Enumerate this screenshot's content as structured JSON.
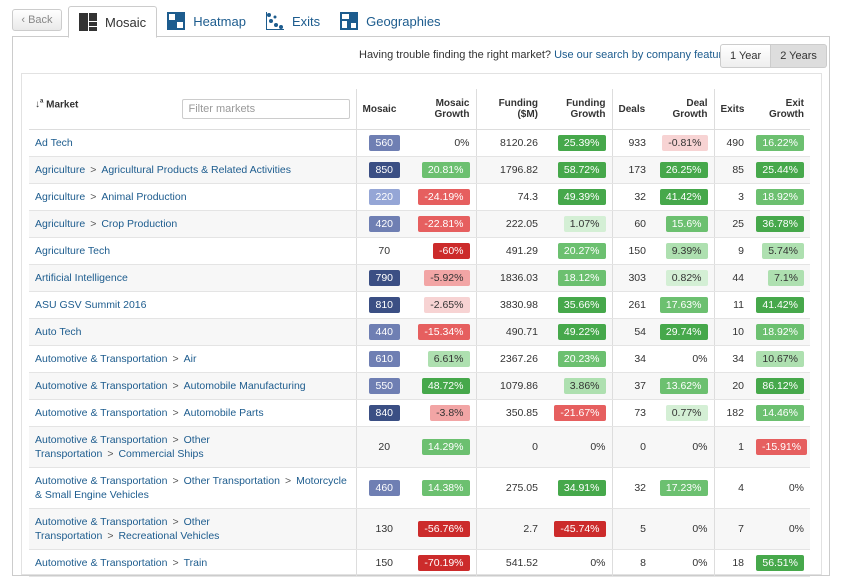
{
  "back_label": "Back",
  "tabs": [
    {
      "label": "Mosaic",
      "icon": "mosaic-icon",
      "active": true
    },
    {
      "label": "Heatmap",
      "icon": "heatmap-icon"
    },
    {
      "label": "Exits",
      "icon": "exits-icon"
    },
    {
      "label": "Geographies",
      "icon": "geographies-icon"
    }
  ],
  "help": {
    "text": "Having trouble finding the right market?",
    "link": "Use our search by company feature."
  },
  "years": [
    "1 Year",
    "2 Years"
  ],
  "filter_placeholder": "Filter markets",
  "columns": {
    "market": "Market",
    "mosaic": "Mosaic",
    "mosaic_growth": "Mosaic Growth",
    "funding": "Funding ($M)",
    "funding_growth": "Funding Growth",
    "deals": "Deals",
    "deal_growth": "Deal Growth",
    "exits": "Exits",
    "exit_growth": "Exit Growth"
  },
  "colors": {
    "mosaic_dark": "#3b4f84",
    "mosaic_mid": "#6f7fb3",
    "mosaic_light": "#95a6d6",
    "green_dark": "#46a84b",
    "green_mid": "#6cc070",
    "green_light": "#aee0b0",
    "green_pale": "#d4efd5",
    "red_dark": "#cc2b2b",
    "red_mid": "#e65f5f",
    "red_light": "#f2a5a5",
    "red_pale": "#f7d3d3"
  },
  "rows": [
    {
      "path": [
        "Ad Tech"
      ],
      "mosaic": "560",
      "mosaic_growth": "0%",
      "funding": "8120.26",
      "funding_growth": "25.39%",
      "deals": "933",
      "deal_growth": "-0.81%",
      "exits": "490",
      "exit_growth": "16.22%"
    },
    {
      "path": [
        "Agriculture",
        "Agricultural Products & Related Activities"
      ],
      "mosaic": "850",
      "mosaic_growth": "20.81%",
      "funding": "1796.82",
      "funding_growth": "58.72%",
      "deals": "173",
      "deal_growth": "26.25%",
      "exits": "85",
      "exit_growth": "25.44%"
    },
    {
      "path": [
        "Agriculture",
        "Animal Production"
      ],
      "mosaic": "220",
      "mosaic_growth": "-24.19%",
      "funding": "74.3",
      "funding_growth": "49.39%",
      "deals": "32",
      "deal_growth": "41.42%",
      "exits": "3",
      "exit_growth": "18.92%"
    },
    {
      "path": [
        "Agriculture",
        "Crop Production"
      ],
      "mosaic": "420",
      "mosaic_growth": "-22.81%",
      "funding": "222.05",
      "funding_growth": "1.07%",
      "deals": "60",
      "deal_growth": "15.6%",
      "exits": "25",
      "exit_growth": "36.78%"
    },
    {
      "path": [
        "Agriculture Tech"
      ],
      "mosaic": "70",
      "mosaic_growth": "-60%",
      "funding": "491.29",
      "funding_growth": "20.27%",
      "deals": "150",
      "deal_growth": "9.39%",
      "exits": "9",
      "exit_growth": "5.74%"
    },
    {
      "path": [
        "Artificial Intelligence"
      ],
      "mosaic": "790",
      "mosaic_growth": "-5.92%",
      "funding": "1836.03",
      "funding_growth": "18.12%",
      "deals": "303",
      "deal_growth": "0.82%",
      "exits": "44",
      "exit_growth": "7.1%"
    },
    {
      "path": [
        "ASU GSV Summit 2016"
      ],
      "mosaic": "810",
      "mosaic_growth": "-2.65%",
      "funding": "3830.98",
      "funding_growth": "35.66%",
      "deals": "261",
      "deal_growth": "17.63%",
      "exits": "11",
      "exit_growth": "41.42%"
    },
    {
      "path": [
        "Auto Tech"
      ],
      "mosaic": "440",
      "mosaic_growth": "-15.34%",
      "funding": "490.71",
      "funding_growth": "49.22%",
      "deals": "54",
      "deal_growth": "29.74%",
      "exits": "10",
      "exit_growth": "18.92%"
    },
    {
      "path": [
        "Automotive & Transportation",
        "Air"
      ],
      "mosaic": "610",
      "mosaic_growth": "6.61%",
      "funding": "2367.26",
      "funding_growth": "20.23%",
      "deals": "34",
      "deal_growth": "0%",
      "exits": "34",
      "exit_growth": "10.67%"
    },
    {
      "path": [
        "Automotive & Transportation",
        "Automobile Manufacturing"
      ],
      "mosaic": "550",
      "mosaic_growth": "48.72%",
      "funding": "1079.86",
      "funding_growth": "3.86%",
      "deals": "37",
      "deal_growth": "13.62%",
      "exits": "20",
      "exit_growth": "86.12%"
    },
    {
      "path": [
        "Automotive & Transportation",
        "Automobile Parts"
      ],
      "mosaic": "840",
      "mosaic_growth": "-3.8%",
      "funding": "350.85",
      "funding_growth": "-21.67%",
      "deals": "73",
      "deal_growth": "0.77%",
      "exits": "182",
      "exit_growth": "14.46%"
    },
    {
      "path": [
        "Automotive & Transportation",
        "Other Transportation",
        "Commercial Ships"
      ],
      "mosaic": "20",
      "mosaic_growth": "14.29%",
      "funding": "0",
      "funding_growth": "0%",
      "deals": "0",
      "deal_growth": "0%",
      "exits": "1",
      "exit_growth": "-15.91%"
    },
    {
      "path": [
        "Automotive & Transportation",
        "Other Transportation",
        "Motorcycle & Small Engine Vehicles"
      ],
      "mosaic": "460",
      "mosaic_growth": "14.38%",
      "funding": "275.05",
      "funding_growth": "34.91%",
      "deals": "32",
      "deal_growth": "17.23%",
      "exits": "4",
      "exit_growth": "0%"
    },
    {
      "path": [
        "Automotive & Transportation",
        "Other Transportation",
        "Recreational Vehicles"
      ],
      "mosaic": "130",
      "mosaic_growth": "-56.76%",
      "funding": "2.7",
      "funding_growth": "-45.74%",
      "deals": "5",
      "deal_growth": "0%",
      "exits": "7",
      "exit_growth": "0%"
    },
    {
      "path": [
        "Automotive & Transportation",
        "Train"
      ],
      "mosaic": "150",
      "mosaic_growth": "-70.19%",
      "funding": "541.52",
      "funding_growth": "0%",
      "deals": "8",
      "deal_growth": "0%",
      "exits": "18",
      "exit_growth": "56.51%"
    }
  ]
}
